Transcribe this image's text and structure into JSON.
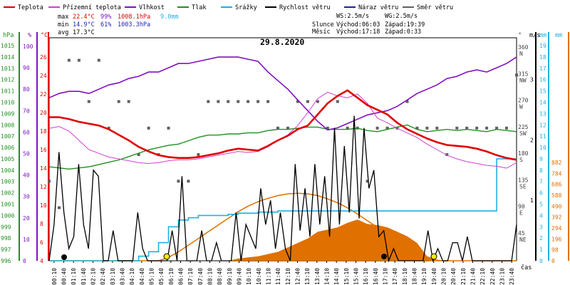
{
  "legend": [
    {
      "label": "Teplota",
      "color": "#e00000"
    },
    {
      "label": "Přízemní teplota",
      "color": "#d040d0"
    },
    {
      "label": "Vlhkost",
      "color": "#8010c0"
    },
    {
      "label": "Tlak",
      "color": "#209020"
    },
    {
      "label": "Srážky",
      "color": "#20b0e0"
    },
    {
      "label": "Rychlost větru",
      "color": "#000000"
    },
    {
      "label": "Náraz větru",
      "color": "#2020a0"
    },
    {
      "label": "Směr větru",
      "color": "#606060"
    }
  ],
  "stats": {
    "rows": [
      {
        "label": "max",
        "temp": "22.4°C",
        "hum": "99%",
        "press": "1008.1hPa",
        "rain": "9.0mm"
      },
      {
        "label": "min",
        "temp": "14.9°C",
        "hum": "61%",
        "press": "1003.3hPa",
        "rain": ""
      },
      {
        "label": "avg",
        "temp": "17.3°C",
        "hum": "",
        "press": "",
        "rain": ""
      }
    ],
    "ws": "WS:2.5m/s",
    "wg": "WG:2.5m/s",
    "sun_label": "Slunce",
    "sunrise": "Východ:06:03",
    "sunset": "Západ:19:39",
    "moon_label": "Měsíc",
    "moonrise": "Východ:17:18",
    "moonset": "Západ:0:33",
    "date": "29.8.2020"
  },
  "chart_data": {
    "type": "line",
    "title": "29.8.2020",
    "xlabel": "čas",
    "x_ticks": [
      "00:10",
      "00:40",
      "01:10",
      "01:40",
      "02:10",
      "02:40",
      "03:10",
      "03:40",
      "04:10",
      "04:40",
      "05:10",
      "05:40",
      "06:10",
      "06:40",
      "07:10",
      "07:40",
      "08:10",
      "08:40",
      "09:10",
      "09:40",
      "10:10",
      "10:40",
      "11:10",
      "11:40",
      "12:10",
      "12:40",
      "13:10",
      "13:40",
      "14:10",
      "14:40",
      "15:10",
      "15:40",
      "16:10",
      "16:40",
      "17:10",
      "17:40",
      "18:10",
      "18:40",
      "19:10",
      "19:40",
      "20:10",
      "20:40",
      "21:10",
      "21:40",
      "22:10",
      "22:40",
      "23:10",
      "23:40"
    ],
    "axes": {
      "hpa": {
        "unit": "hPa",
        "ticks": [
          "996",
          "997",
          "998",
          "999",
          "1000",
          "1001",
          "1002",
          "1003",
          "1004",
          "1005",
          "1006",
          "1007",
          "1008",
          "1009",
          "1010",
          "1011",
          "1012",
          "1013",
          "1014",
          "1015"
        ],
        "color": "#209020"
      },
      "pct": {
        "unit": "%",
        "ticks": [
          "0",
          "10",
          "20",
          "30",
          "40",
          "50",
          "60",
          "70",
          "80",
          "90",
          "100"
        ],
        "color": "#8010c0"
      },
      "degc": {
        "unit": "°C",
        "ticks": [
          "4",
          "6",
          "8",
          "10",
          "12",
          "14",
          "16",
          "18",
          "20",
          "22",
          "24",
          "26"
        ],
        "color": "#e00000"
      },
      "deg": {
        "unit": "°",
        "ticks": [
          {
            "v": "45",
            "d": "NE"
          },
          {
            "v": "90",
            "d": "E"
          },
          {
            "v": "135",
            "d": "SE"
          },
          {
            "v": "180",
            "d": "S"
          },
          {
            "v": "225",
            "d": "SW"
          },
          {
            "v": "270",
            "d": "W"
          },
          {
            "v": "315",
            "d": "NW"
          },
          {
            "v": "360",
            "d": "N"
          }
        ],
        "color": "#404040"
      },
      "ms": {
        "unit": "m/s",
        "ticks": [
          "1",
          "2",
          "3"
        ],
        "color": "#000000"
      },
      "mm": {
        "unit": "mm",
        "ticks": [
          "0",
          "1",
          "2",
          "3",
          "4",
          "5",
          "6",
          "7",
          "8",
          "9",
          "10",
          "11",
          "12",
          "13",
          "14",
          "15",
          "16",
          "17",
          "18",
          "19"
        ],
        "color": "#20b0e0"
      },
      "wm2": {
        "unit": "",
        "ticks": [
          "0",
          "98",
          "196",
          "294",
          "392",
          "490",
          "588",
          "686",
          "784",
          "882"
        ],
        "color": "#e07000"
      }
    },
    "series": [
      {
        "name": "Teplota",
        "unit": "°C",
        "color": "#e00000",
        "values": [
          19.5,
          19.5,
          19.3,
          19.0,
          18.8,
          18.6,
          18.2,
          17.6,
          17.0,
          16.3,
          15.8,
          15.4,
          15.2,
          15.1,
          15.1,
          15.2,
          15.4,
          15.6,
          15.9,
          16.1,
          16.0,
          15.9,
          16.4,
          17.0,
          17.5,
          18.2,
          18.6,
          19.8,
          21.0,
          21.8,
          22.4,
          21.6,
          20.8,
          20.3,
          19.8,
          18.9,
          18.2,
          17.7,
          17.2,
          16.8,
          16.5,
          16.4,
          16.3,
          16.1,
          15.8,
          15.4,
          15.1,
          14.9
        ]
      },
      {
        "name": "Přízemní teplota",
        "unit": "°C",
        "color": "#d040d0",
        "values": [
          18.3,
          18.5,
          18.0,
          17.0,
          16.0,
          15.6,
          15.2,
          15.0,
          14.8,
          14.6,
          14.5,
          14.6,
          14.8,
          14.9,
          14.9,
          15.0,
          15.2,
          15.4,
          15.6,
          15.8,
          15.7,
          15.8,
          16.3,
          17.0,
          17.6,
          18.6,
          20.0,
          21.5,
          22.2,
          21.8,
          21.6,
          22.0,
          21.0,
          19.4,
          18.9,
          18.3,
          17.8,
          17.3,
          16.6,
          16.0,
          15.4,
          15.0,
          14.7,
          14.5,
          14.3,
          14.2,
          14.0,
          14.6
        ]
      },
      {
        "name": "Vlhkost",
        "unit": "%",
        "color": "#8010c0",
        "values": [
          76,
          78,
          79,
          79,
          78,
          80,
          82,
          83,
          85,
          86,
          88,
          88,
          90,
          92,
          92,
          93,
          94,
          95,
          95,
          95,
          94,
          93,
          88,
          84,
          80,
          75,
          70,
          65,
          61,
          62,
          64,
          66,
          68,
          69,
          70,
          72,
          75,
          78,
          80,
          82,
          85,
          86,
          88,
          89,
          88,
          90,
          92,
          95
        ]
      },
      {
        "name": "Tlak",
        "unit": "hPa",
        "color": "#209020",
        "values": [
          1004.3,
          1004.2,
          1004.1,
          1004.2,
          1004.3,
          1004.5,
          1004.7,
          1004.9,
          1005.2,
          1005.5,
          1005.8,
          1006.0,
          1006.2,
          1006.3,
          1006.6,
          1006.9,
          1007.1,
          1007.1,
          1007.2,
          1007.2,
          1007.3,
          1007.3,
          1007.5,
          1007.6,
          1007.6,
          1007.7,
          1007.8,
          1007.8,
          1007.6,
          1007.6,
          1007.6,
          1007.7,
          1007.5,
          1007.4,
          1007.6,
          1007.8,
          1008.0,
          1007.6,
          1007.4,
          1007.5,
          1007.6,
          1007.5,
          1007.6,
          1007.5,
          1007.4,
          1007.6,
          1007.5,
          1007.4
        ]
      },
      {
        "name": "Srážky",
        "unit": "mm",
        "color": "#20b0e0",
        "values": [
          0,
          0,
          0,
          0,
          0,
          0,
          0,
          0,
          0,
          0.4,
          0.8,
          1.6,
          3.0,
          3.6,
          3.8,
          4.0,
          4.0,
          4.0,
          4.1,
          4.2,
          4.2,
          4.3,
          4.3,
          4.4,
          4.4,
          4.4,
          4.4,
          4.4,
          4.4,
          4.4,
          4.4,
          4.4,
          4.4,
          4.4,
          4.4,
          4.4,
          4.4,
          4.4,
          4.4,
          4.4,
          4.4,
          4.4,
          4.4,
          4.4,
          4.4,
          9.0,
          9.0,
          9.0
        ]
      },
      {
        "name": "Rychlost větru",
        "unit": "m/s",
        "color": "#000000",
        "values": [
          0,
          0.6,
          1.8,
          0.8,
          0.2,
          0.4,
          1.6,
          0.6,
          0.2,
          1.5,
          1.4,
          0,
          0,
          0.5,
          0,
          0,
          0,
          0,
          0.8,
          0.2,
          0,
          0,
          0,
          0,
          0,
          0.5,
          0,
          1.4,
          0,
          0,
          0,
          0.5,
          0,
          0,
          0.3,
          0,
          0,
          0,
          0.8,
          0,
          0.6,
          0.4,
          0.2,
          1.2,
          0.6,
          1.0,
          0.2,
          0.8,
          0.2,
          0,
          1.6,
          0.5,
          1.2,
          0.4,
          1.6,
          0.6,
          1.4,
          0.4,
          2.2,
          0.6,
          1.9,
          0.8,
          2.4,
          0.7,
          2.2,
          1.2,
          1.5,
          0.4,
          0.5,
          0,
          0.2,
          0,
          0,
          0,
          0,
          0,
          0,
          0.5,
          0,
          0.2,
          0,
          0,
          0.3,
          0.3,
          0,
          0.4,
          0,
          0,
          0,
          0,
          0,
          0,
          0,
          0,
          0,
          0.6
        ]
      },
      {
        "name": "Náraz větru",
        "unit": "m/s",
        "color": "#2020a0",
        "values": []
      },
      {
        "name": "Směr větru",
        "unit": "°",
        "color": "#606060",
        "values": [
          135,
          90,
          340,
          340,
          270,
          340,
          225,
          270,
          270,
          180,
          225,
          180,
          225,
          135,
          135,
          180,
          270,
          270,
          270,
          270,
          270,
          270,
          270,
          225,
          225,
          270,
          270,
          270,
          225,
          270,
          225,
          225,
          135,
          225,
          225,
          225,
          270,
          225,
          225,
          225,
          180,
          225,
          225,
          225,
          225,
          225,
          225,
          315
        ]
      },
      {
        "name": "Radiace",
        "unit": "",
        "color": "#e07000",
        "values": [
          0,
          0,
          0,
          0,
          0,
          0,
          0,
          0,
          0,
          0,
          0,
          0,
          0,
          0,
          0,
          0,
          0,
          0,
          0,
          20,
          30,
          40,
          60,
          80,
          120,
          160,
          200,
          260,
          280,
          300,
          340,
          370,
          330,
          320,
          300,
          260,
          220,
          160,
          40,
          10,
          0,
          0,
          0,
          0,
          0,
          0,
          0,
          0
        ]
      },
      {
        "name": "Teoretická radiace",
        "unit": "",
        "color": "#e07000",
        "values": [
          0,
          0,
          0,
          0,
          0,
          0,
          0,
          0,
          0,
          0,
          0,
          0,
          30,
          80,
          140,
          200,
          260,
          320,
          380,
          440,
          490,
          530,
          560,
          585,
          600,
          605,
          600,
          585,
          555,
          520,
          475,
          420,
          360,
          300,
          235,
          170,
          105,
          45,
          5,
          0,
          0,
          0,
          0,
          0,
          0,
          0,
          0,
          0
        ]
      }
    ]
  }
}
